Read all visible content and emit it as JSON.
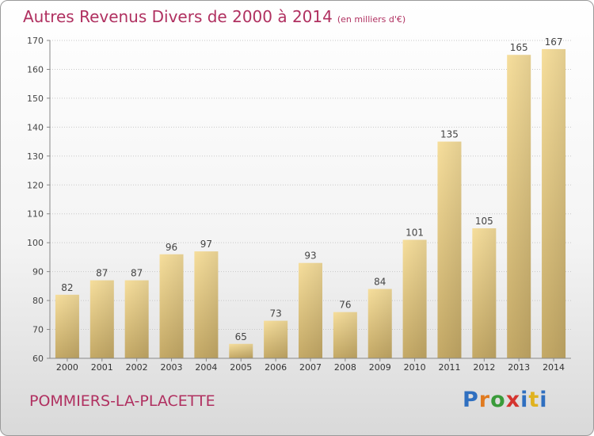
{
  "header": {
    "title": "Autres Revenus Divers de 2000 à 2014",
    "unit": "(en milliers d'€)"
  },
  "footer": {
    "location": "POMMIERS-LA-PLACETTE",
    "logo": "Proxiti"
  },
  "colors": {
    "title": "#b03060",
    "bar_light": "#f5dc9a",
    "bar_dark": "#c8ad6a",
    "grid": "#cccccc"
  },
  "chart_data": {
    "type": "bar",
    "categories": [
      "2000",
      "2001",
      "2002",
      "2003",
      "2004",
      "2005",
      "2006",
      "2007",
      "2008",
      "2009",
      "2010",
      "2011",
      "2012",
      "2013",
      "2014"
    ],
    "values": [
      82,
      87,
      87,
      96,
      97,
      65,
      73,
      93,
      76,
      84,
      101,
      135,
      105,
      165,
      167
    ],
    "ylim": [
      60,
      170
    ],
    "yticks": [
      60,
      70,
      80,
      90,
      100,
      110,
      120,
      130,
      140,
      150,
      160,
      170
    ],
    "grid": true
  }
}
